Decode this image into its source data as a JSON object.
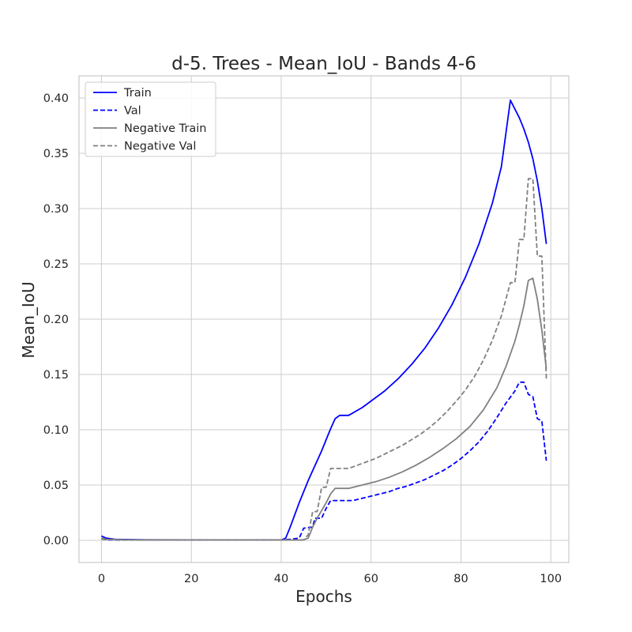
{
  "chart_data": {
    "type": "line",
    "title": "d-5. Trees - Mean_IoU - Bands 4-6",
    "xlabel": "Epochs",
    "ylabel": "Mean_IoU",
    "xlim": [
      -5,
      104
    ],
    "ylim": [
      -0.02,
      0.42
    ],
    "xticks": [
      0,
      20,
      40,
      60,
      80,
      100
    ],
    "yticks": [
      0.0,
      0.05,
      0.1,
      0.15,
      0.2,
      0.25,
      0.3,
      0.35,
      0.4
    ],
    "ytick_labels": [
      "0.00",
      "0.05",
      "0.10",
      "0.15",
      "0.20",
      "0.25",
      "0.30",
      "0.35",
      "0.40"
    ],
    "grid": true,
    "legend_position": "upper left",
    "series": [
      {
        "name": "Train",
        "color": "#0000ff",
        "dash": "solid",
        "points": [
          [
            0,
            0.004
          ],
          [
            1,
            0.002
          ],
          [
            2,
            0.0015
          ],
          [
            3,
            0.001
          ],
          [
            5,
            0.0008
          ],
          [
            10,
            0.0005
          ],
          [
            20,
            0.0004
          ],
          [
            30,
            0.0004
          ],
          [
            40,
            0.0004
          ],
          [
            41,
            0.002
          ],
          [
            42,
            0.012
          ],
          [
            43,
            0.023
          ],
          [
            44,
            0.034
          ],
          [
            45,
            0.044
          ],
          [
            46,
            0.054
          ],
          [
            47,
            0.063
          ],
          [
            48,
            0.072
          ],
          [
            49,
            0.081
          ],
          [
            50,
            0.091
          ],
          [
            51,
            0.101
          ],
          [
            52,
            0.11
          ],
          [
            53,
            0.113
          ],
          [
            55,
            0.113
          ],
          [
            58,
            0.12
          ],
          [
            60,
            0.126
          ],
          [
            63,
            0.135
          ],
          [
            66,
            0.146
          ],
          [
            69,
            0.159
          ],
          [
            72,
            0.174
          ],
          [
            75,
            0.192
          ],
          [
            78,
            0.213
          ],
          [
            81,
            0.238
          ],
          [
            84,
            0.268
          ],
          [
            87,
            0.305
          ],
          [
            89,
            0.338
          ],
          [
            91,
            0.398
          ],
          [
            93,
            0.382
          ],
          [
            94,
            0.372
          ],
          [
            95,
            0.36
          ],
          [
            96,
            0.345
          ],
          [
            97,
            0.325
          ],
          [
            98,
            0.3
          ],
          [
            99,
            0.268
          ]
        ]
      },
      {
        "name": "Val",
        "color": "#0000ff",
        "dash": "dashed",
        "points": [
          [
            0,
            0.002
          ],
          [
            1,
            0.0005
          ],
          [
            5,
            0.0003
          ],
          [
            20,
            0.0003
          ],
          [
            40,
            0.0003
          ],
          [
            42,
            0.001
          ],
          [
            44,
            0.002
          ],
          [
            45,
            0.011
          ],
          [
            47,
            0.012
          ],
          [
            47.5,
            0.02
          ],
          [
            49,
            0.02
          ],
          [
            50,
            0.029
          ],
          [
            51,
            0.036
          ],
          [
            53,
            0.036
          ],
          [
            56,
            0.036
          ],
          [
            58,
            0.038
          ],
          [
            60,
            0.04
          ],
          [
            62,
            0.042
          ],
          [
            64,
            0.044
          ],
          [
            66,
            0.047
          ],
          [
            68,
            0.049
          ],
          [
            70,
            0.052
          ],
          [
            72,
            0.055
          ],
          [
            74,
            0.059
          ],
          [
            76,
            0.063
          ],
          [
            78,
            0.068
          ],
          [
            80,
            0.074
          ],
          [
            82,
            0.081
          ],
          [
            84,
            0.089
          ],
          [
            86,
            0.099
          ],
          [
            88,
            0.111
          ],
          [
            90,
            0.124
          ],
          [
            92,
            0.135
          ],
          [
            93,
            0.143
          ],
          [
            94,
            0.143
          ],
          [
            95,
            0.132
          ],
          [
            96,
            0.13
          ],
          [
            97,
            0.11
          ],
          [
            98,
            0.108
          ],
          [
            99,
            0.072
          ]
        ]
      },
      {
        "name": "Negative Train",
        "color": "#808080",
        "dash": "solid",
        "points": [
          [
            0,
            0.002
          ],
          [
            1,
            0.001
          ],
          [
            5,
            0.0005
          ],
          [
            20,
            0.0003
          ],
          [
            40,
            0.0003
          ],
          [
            44,
            0.0003
          ],
          [
            45,
            0.0005
          ],
          [
            46,
            0.002
          ],
          [
            47,
            0.012
          ],
          [
            48,
            0.02
          ],
          [
            49,
            0.027
          ],
          [
            50,
            0.034
          ],
          [
            51,
            0.042
          ],
          [
            52,
            0.047
          ],
          [
            55,
            0.047
          ],
          [
            58,
            0.05
          ],
          [
            61,
            0.053
          ],
          [
            64,
            0.057
          ],
          [
            67,
            0.062
          ],
          [
            70,
            0.068
          ],
          [
            73,
            0.075
          ],
          [
            76,
            0.083
          ],
          [
            79,
            0.092
          ],
          [
            82,
            0.103
          ],
          [
            85,
            0.118
          ],
          [
            88,
            0.138
          ],
          [
            90,
            0.157
          ],
          [
            92,
            0.18
          ],
          [
            93,
            0.195
          ],
          [
            94,
            0.212
          ],
          [
            95,
            0.235
          ],
          [
            96,
            0.237
          ],
          [
            97,
            0.218
          ],
          [
            98,
            0.19
          ],
          [
            99,
            0.155
          ]
        ]
      },
      {
        "name": "Negative Val",
        "color": "#808080",
        "dash": "dashed",
        "points": [
          [
            0,
            0.001
          ],
          [
            5,
            0.0003
          ],
          [
            20,
            0.0003
          ],
          [
            40,
            0.0003
          ],
          [
            45,
            0.0003
          ],
          [
            46,
            0.005
          ],
          [
            47,
            0.026
          ],
          [
            48,
            0.026
          ],
          [
            49,
            0.048
          ],
          [
            50,
            0.048
          ],
          [
            51,
            0.065
          ],
          [
            55,
            0.065
          ],
          [
            57,
            0.068
          ],
          [
            59,
            0.071
          ],
          [
            61,
            0.074
          ],
          [
            63,
            0.078
          ],
          [
            65,
            0.082
          ],
          [
            67,
            0.086
          ],
          [
            69,
            0.091
          ],
          [
            71,
            0.096
          ],
          [
            73,
            0.102
          ],
          [
            75,
            0.109
          ],
          [
            77,
            0.117
          ],
          [
            79,
            0.126
          ],
          [
            81,
            0.136
          ],
          [
            83,
            0.148
          ],
          [
            85,
            0.163
          ],
          [
            87,
            0.181
          ],
          [
            89,
            0.203
          ],
          [
            91,
            0.233
          ],
          [
            92,
            0.233
          ],
          [
            93,
            0.272
          ],
          [
            94,
            0.272
          ],
          [
            95,
            0.327
          ],
          [
            96,
            0.327
          ],
          [
            97,
            0.257
          ],
          [
            98,
            0.257
          ],
          [
            99,
            0.146
          ]
        ]
      }
    ]
  }
}
